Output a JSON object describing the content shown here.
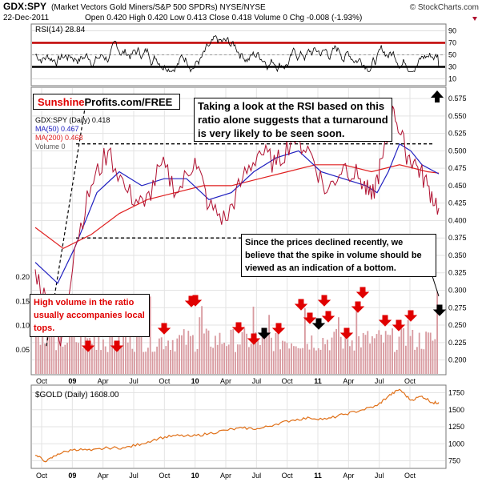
{
  "header": {
    "symbol": "GDX:SPY",
    "description": "(Market Vectors Gold Miners/S&P 500 SPDRs) NYSE/NYSE",
    "watermark": "© StockCharts.com",
    "date": "22-Dec-2011",
    "ohlc": "Open 0.420  High 0.420  Low 0.413  Close 0.418  Volume 0  Chg -0.008 (-1.93%)"
  },
  "brand": {
    "part1": "Sunshine",
    "part2": "Profits.com/FREE"
  },
  "annotations": {
    "rsi_note": "Taking a look at the RSI based on this ratio alone suggests that a turnaround is very likely to be seen soon.",
    "volume_note": "Since the prices declined recently, we believe that the spike in volume should be viewed as an indication of a bottom.",
    "tops_note": "High volume in the ratio usually accompanies local tops."
  },
  "colors": {
    "price": "#b01030",
    "ma50": "#2020c0",
    "ma200": "#e02020",
    "gold": "#e07018",
    "volume": "#d89aa0",
    "accent_red": "#e00000"
  },
  "chart_data": [
    {
      "type": "line",
      "name": "rsi-panel",
      "legend": "RSI(14) 28.84",
      "ylim": [
        0,
        100
      ],
      "yticks": [
        10,
        30,
        50,
        70,
        90
      ],
      "overbought": 70,
      "oversold": 30,
      "value": 28.84
    },
    {
      "type": "line",
      "name": "price-panel",
      "legend": [
        "GDX:SPY (Daily) 0.418",
        "MA(50) 0.467",
        "MA(200) 0.468",
        "Volume 0"
      ],
      "ylim": [
        0.18,
        0.59
      ],
      "yticks": [
        0.2,
        0.225,
        0.25,
        0.275,
        0.3,
        0.325,
        0.35,
        0.375,
        0.4,
        0.425,
        0.45,
        0.475,
        0.5,
        0.525,
        0.55,
        0.575
      ],
      "volume_ylim": [
        0,
        0.21
      ],
      "volume_ticks": [
        0.05,
        0.1,
        0.15,
        0.2
      ],
      "xticks": [
        "Oct",
        "09",
        "Apr",
        "Jul",
        "Oct",
        "10",
        "Apr",
        "Jul",
        "Oct",
        "11",
        "Apr",
        "Jul",
        "Oct"
      ],
      "resistance": 0.51,
      "support": 0.375,
      "series": [
        {
          "name": "GDX:SPY",
          "x": [
            0,
            5,
            9,
            14,
            20,
            26,
            33,
            39,
            45,
            51,
            57,
            62,
            68,
            74,
            80,
            86,
            92,
            98,
            104,
            110,
            116,
            120,
            124,
            128,
            132,
            136,
            140,
            144
          ],
          "values": [
            0.33,
            0.27,
            0.22,
            0.36,
            0.45,
            0.5,
            0.44,
            0.42,
            0.48,
            0.44,
            0.49,
            0.42,
            0.4,
            0.46,
            0.5,
            0.48,
            0.52,
            0.5,
            0.44,
            0.48,
            0.46,
            0.43,
            0.49,
            0.56,
            0.5,
            0.48,
            0.45,
            0.418
          ]
        },
        {
          "name": "MA(50)",
          "x": [
            0,
            8,
            14,
            22,
            30,
            38,
            46,
            54,
            62,
            70,
            78,
            86,
            94,
            102,
            110,
            118,
            122,
            126,
            130,
            134,
            138,
            144
          ],
          "values": [
            0.34,
            0.31,
            0.36,
            0.44,
            0.47,
            0.45,
            0.46,
            0.46,
            0.43,
            0.44,
            0.47,
            0.49,
            0.5,
            0.47,
            0.46,
            0.45,
            0.44,
            0.47,
            0.51,
            0.5,
            0.48,
            0.467
          ]
        },
        {
          "name": "MA(200)",
          "x": [
            0,
            10,
            20,
            30,
            40,
            50,
            60,
            70,
            80,
            90,
            100,
            110,
            120,
            130,
            140,
            144
          ],
          "values": [
            0.39,
            0.36,
            0.38,
            0.41,
            0.43,
            0.44,
            0.45,
            0.45,
            0.46,
            0.47,
            0.48,
            0.48,
            0.47,
            0.48,
            0.47,
            0.468
          ]
        }
      ],
      "xlim": [
        0,
        144
      ],
      "volume_spikes": [
        0.16,
        0.13,
        0.14,
        0.2
      ]
    },
    {
      "type": "line",
      "name": "gold-panel",
      "legend": "$GOLD (Daily) 1608.00",
      "ylim": [
        650,
        1850
      ],
      "yticks": [
        750,
        1000,
        1250,
        1500,
        1750
      ],
      "xticks": [
        "Oct",
        "09",
        "Apr",
        "Jul",
        "Oct",
        "10",
        "Apr",
        "Jul",
        "Oct",
        "11",
        "Apr",
        "Jul",
        "Oct"
      ],
      "series": [
        {
          "name": "$GOLD",
          "x": [
            0,
            4,
            8,
            14,
            20,
            26,
            32,
            38,
            44,
            50,
            56,
            62,
            68,
            74,
            80,
            86,
            92,
            98,
            104,
            110,
            116,
            122,
            126,
            130,
            134,
            138,
            142,
            144
          ],
          "values": [
            830,
            740,
            850,
            920,
            900,
            940,
            940,
            1000,
            1080,
            1120,
            1110,
            1150,
            1200,
            1230,
            1220,
            1290,
            1350,
            1380,
            1360,
            1430,
            1490,
            1560,
            1700,
            1800,
            1640,
            1700,
            1600,
            1608
          ]
        }
      ]
    }
  ]
}
